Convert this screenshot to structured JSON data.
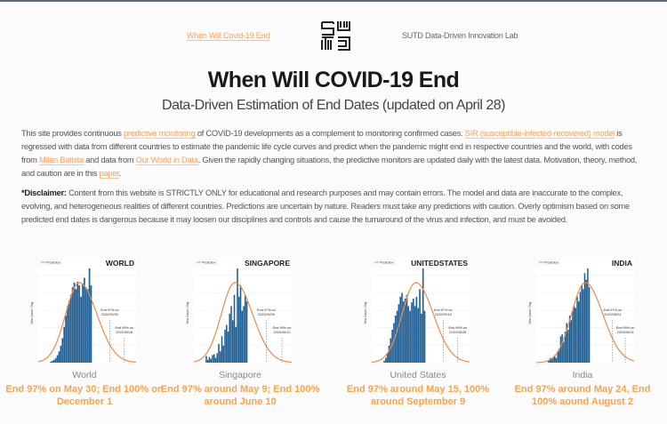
{
  "nav": {
    "home_link": "When Will Covid-19 End",
    "lab_name": "SUTD Data-Driven Innovation Lab",
    "logo_text": "SUTD"
  },
  "header": {
    "title": "When Will COVID-19 End",
    "subtitle": "Data-Driven Estimation of End Dates (updated on April 28)"
  },
  "intro": {
    "t1": "This site provides continuous ",
    "l1": "predictive monitoring",
    "t2": " of COVID-19 developments as a complement to monitoring confirmed cases. ",
    "l2": "SIR (susceptible-infected-recovered) model",
    "t3": " is regressed with data from different countries to estimate the pandemic life cycle curves and predict when the pandemic might end in respective countries and the world, with codes from ",
    "l3": "Milan Batista",
    "t4": " and data from ",
    "l4": "Our World in Data",
    "t5": ". Given the rapidly changing situations, the predictive monitors are updated daily with the latest data. Motivation, theory, method, and caution are in this ",
    "l5": "paper",
    "t6": "."
  },
  "disclaimer": {
    "label": "*Disclaimer:",
    "text": " Content from this website is STRICTLY ONLY for educational and research purposes and may contain errors. The model and data are inaccurate to the complex, evolving, and heterogeneous realities of different countries. Predictions are uncertain by nature. Readers must take any predictions with caution. Overly optimism based on some predicted end dates is dangerous because it may loosen our disciplines and controls and cause the turnaround of the virus and infection, and must be avoided."
  },
  "colors": {
    "accent": "#f7a44a",
    "bars": "#1f5f93",
    "prediction": "#f0894a"
  },
  "chart_data": [
    {
      "type": "bar",
      "title": "WORLD",
      "legend": "Prediction",
      "ylabel": "New Cases / Day",
      "annotations": [
        "End 97% on 2020/05/30",
        "End 99% on 2020/06/16"
      ],
      "caption": "World",
      "prediction_text": "End 97% on May 30; End 100% on December 1",
      "values": [
        0.01,
        0.02,
        0.03,
        0.05,
        0.08,
        0.12,
        0.18,
        0.26,
        0.38,
        0.5,
        0.6,
        0.66,
        0.72,
        0.8,
        0.85,
        0.78,
        0.86,
        0.82,
        0.7,
        0.84,
        0.9,
        0.8,
        0.78,
        1.0,
        0.82
      ],
      "curve_peak": 0.42,
      "markers": [
        0.73,
        0.88
      ]
    },
    {
      "type": "bar",
      "title": "SINGAPORE",
      "legend": "Prediction",
      "ylabel": "New Cases / Day",
      "annotations": [
        "End 97% on 2020/05/09",
        "End 99% on 2020/06/10"
      ],
      "caption": "Singapore",
      "prediction_text": "End 97% around May 9; End 100% around June 10",
      "values": [
        0.07,
        0.03,
        0.06,
        0.04,
        0.08,
        0.09,
        0.05,
        0.1,
        0.2,
        0.12,
        0.28,
        0.18,
        0.35,
        0.4,
        0.33,
        0.52,
        0.6,
        0.45,
        0.72,
        0.38,
        1.0,
        0.7,
        0.82,
        0.55,
        0.6,
        0.72,
        0.65
      ],
      "curve_peak": 0.42,
      "markers": [
        0.74,
        0.9
      ]
    },
    {
      "type": "bar",
      "title": "UNITEDSTATES",
      "legend": "Prediction",
      "ylabel": "New Cases / Day",
      "annotations": [
        "End 97% on 2020/05/15",
        "End 99% on 2020/05/28"
      ],
      "caption": "United States",
      "prediction_text": "End 97% around May 15, 100% around September 9",
      "values": [
        0.02,
        0.05,
        0.1,
        0.18,
        0.26,
        0.35,
        0.42,
        0.5,
        0.55,
        0.62,
        0.7,
        0.74,
        0.65,
        0.68,
        0.72,
        0.6,
        0.55,
        0.64,
        0.68,
        0.6,
        0.7,
        0.58,
        0.78,
        0.52,
        1.0,
        0.55
      ],
      "curve_peak": 0.45,
      "markers": [
        0.73,
        0.88
      ]
    },
    {
      "type": "bar",
      "title": "INDIA",
      "legend": "Prediction",
      "ylabel": "New Cases / Day",
      "annotations": [
        "End 97% on 2020/05/24",
        "End 99% on 2020/06/04"
      ],
      "caption": "India",
      "prediction_text": "End 97% around May 24, End 100% aound August 2",
      "values": [
        0.03,
        0.05,
        0.04,
        0.06,
        0.08,
        0.05,
        0.12,
        0.15,
        0.28,
        0.3,
        0.22,
        0.33,
        0.42,
        0.35,
        0.5,
        0.45,
        0.55,
        0.6,
        0.58,
        0.7,
        0.65,
        0.75,
        0.82,
        0.78,
        0.95,
        0.88,
        1.0,
        0.8
      ],
      "curve_peak": 0.5,
      "markers": [
        0.78,
        0.91
      ]
    }
  ]
}
